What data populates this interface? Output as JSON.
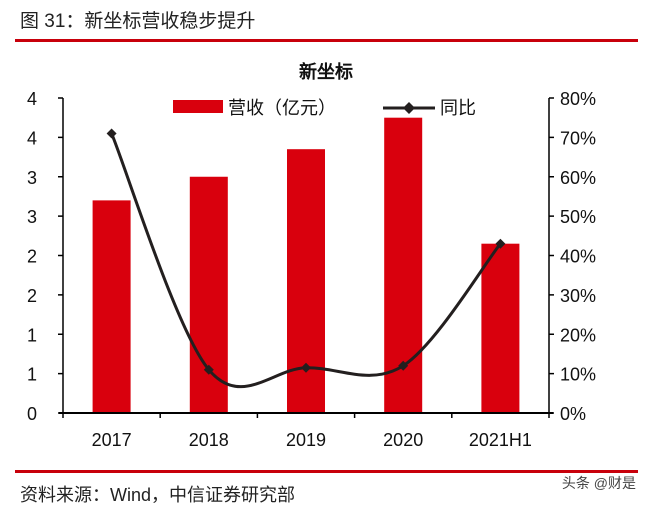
{
  "figure_title": "图 31：新坐标营收稳步提升",
  "source": "资料来源：Wind，中信证券研究部",
  "watermark": "头条 @财是",
  "colors": {
    "bar": "#d9000d",
    "line": "#231f1f",
    "rule": "#c8000b"
  },
  "chart_data": {
    "type": "bar+line",
    "title": "新坐标",
    "categories": [
      "2017",
      "2018",
      "2019",
      "2020",
      "2021H1"
    ],
    "series": [
      {
        "name": "营收（亿元）",
        "type": "bar",
        "axis": "left",
        "values": [
          2.7,
          3.0,
          3.35,
          3.75,
          2.15
        ]
      },
      {
        "name": "同比",
        "type": "line",
        "axis": "right",
        "values": [
          71,
          11,
          11.5,
          12,
          43
        ]
      }
    ],
    "left_axis": {
      "ylim": [
        0,
        4
      ],
      "tick_labels": [
        "0",
        "1",
        "1",
        "2",
        "2",
        "3",
        "3",
        "4",
        "4"
      ]
    },
    "right_axis": {
      "ylim": [
        0,
        80
      ],
      "tick_labels": [
        "0%",
        "10%",
        "20%",
        "30%",
        "40%",
        "50%",
        "60%",
        "70%",
        "80%"
      ]
    },
    "grid": false,
    "legend": "top"
  }
}
